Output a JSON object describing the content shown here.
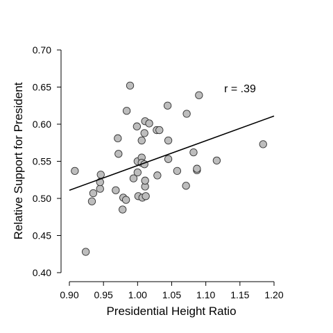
{
  "chart_data": {
    "type": "scatter",
    "xlabel": "Presidential Height Ratio",
    "ylabel": "Relative Support for President",
    "xlim": [
      0.9,
      1.2
    ],
    "ylim": [
      0.4,
      0.7
    ],
    "xticks": [
      "0.90",
      "0.95",
      "1.00",
      "1.05",
      "1.10",
      "1.15",
      "1.20"
    ],
    "yticks": [
      "0.40",
      "0.45",
      "0.50",
      "0.55",
      "0.60",
      "0.65",
      "0.70"
    ],
    "grid": false,
    "annotation": "r = .39",
    "fit_line": {
      "x": [
        0.9,
        1.2
      ],
      "y": [
        0.511,
        0.611
      ]
    },
    "series": [
      {
        "points": [
          [
            0.908,
            0.537
          ],
          [
            0.924,
            0.428
          ],
          [
            0.933,
            0.496
          ],
          [
            0.935,
            0.507
          ],
          [
            0.945,
            0.513
          ],
          [
            0.945,
            0.522
          ],
          [
            0.946,
            0.532
          ],
          [
            0.968,
            0.511
          ],
          [
            0.971,
            0.581
          ],
          [
            0.972,
            0.56
          ],
          [
            0.978,
            0.485
          ],
          [
            0.979,
            0.501
          ],
          [
            0.983,
            0.498
          ],
          [
            0.984,
            0.618
          ],
          [
            0.989,
            0.652
          ],
          [
            0.994,
            0.527
          ],
          [
            0.999,
            0.597
          ],
          [
            1.0,
            0.55
          ],
          [
            1.0,
            0.535
          ],
          [
            1.001,
            0.503
          ],
          [
            1.006,
            0.555
          ],
          [
            1.006,
            0.548
          ],
          [
            1.006,
            0.578
          ],
          [
            1.007,
            0.501
          ],
          [
            1.01,
            0.546
          ],
          [
            1.01,
            0.588
          ],
          [
            1.011,
            0.604
          ],
          [
            1.011,
            0.516
          ],
          [
            1.011,
            0.524
          ],
          [
            1.012,
            0.503
          ],
          [
            1.017,
            0.601
          ],
          [
            1.028,
            0.592
          ],
          [
            1.029,
            0.531
          ],
          [
            1.032,
            0.592
          ],
          [
            1.044,
            0.625
          ],
          [
            1.045,
            0.578
          ],
          [
            1.045,
            0.553
          ],
          [
            1.058,
            0.537
          ],
          [
            1.071,
            0.517
          ],
          [
            1.072,
            0.614
          ],
          [
            1.082,
            0.562
          ],
          [
            1.087,
            0.538
          ],
          [
            1.087,
            0.54
          ],
          [
            1.09,
            0.639
          ],
          [
            1.116,
            0.551
          ],
          [
            1.184,
            0.573
          ]
        ]
      }
    ]
  }
}
